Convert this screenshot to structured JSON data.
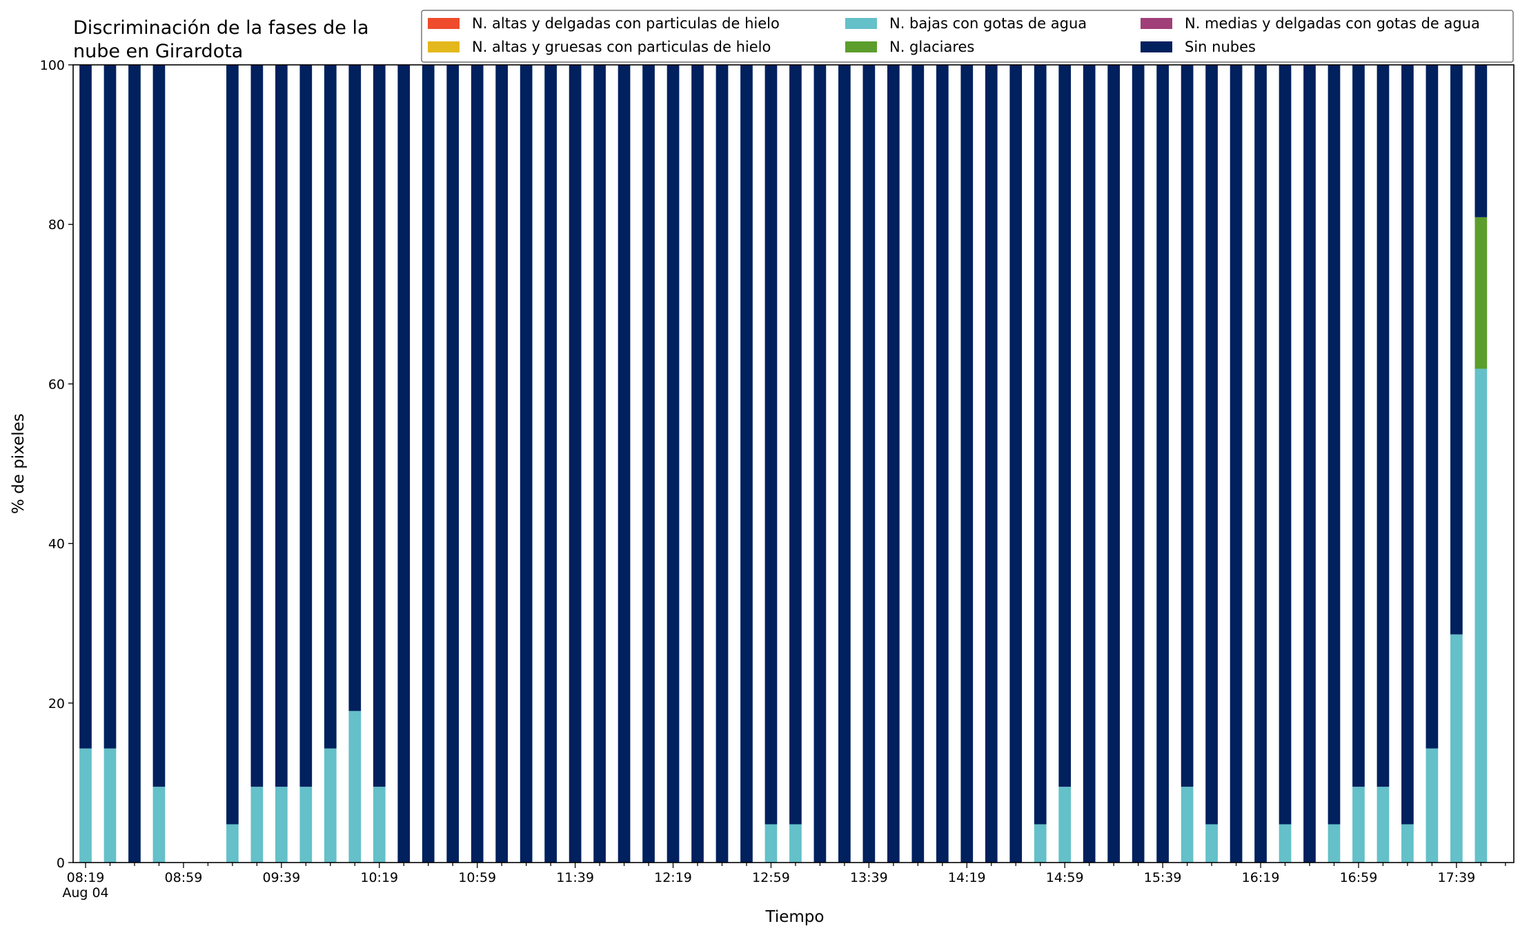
{
  "chart_data": {
    "type": "bar",
    "stacked": true,
    "title_lines": [
      "Discriminación de la fases de la",
      "nube en Girardota"
    ],
    "xlabel": "Tiempo",
    "ylabel": "% de pixeles",
    "ylim": [
      0,
      100
    ],
    "yticks": [
      0,
      20,
      40,
      60,
      80,
      100
    ],
    "grid": false,
    "legend_position": "top-right",
    "legend_columns": 3,
    "x_start": "08:19",
    "x_step_minutes": 10,
    "x_tick_labels": [
      "08:19",
      "08:59",
      "09:39",
      "10:19",
      "10:59",
      "11:39",
      "12:19",
      "12:59",
      "13:39",
      "14:19",
      "14:59",
      "15:39",
      "16:19",
      "16:59",
      "17:39"
    ],
    "x_tick_sublabel": "Aug 04",
    "categories": [
      "08:19",
      "08:29",
      "08:39",
      "08:49",
      "08:59",
      "09:09",
      "09:19",
      "09:29",
      "09:39",
      "09:49",
      "09:59",
      "10:09",
      "10:19",
      "10:29",
      "10:39",
      "10:49",
      "10:59",
      "11:09",
      "11:19",
      "11:29",
      "11:39",
      "11:49",
      "11:59",
      "12:09",
      "12:19",
      "12:29",
      "12:39",
      "12:49",
      "12:59",
      "13:09",
      "13:19",
      "13:29",
      "13:39",
      "13:49",
      "13:59",
      "14:09",
      "14:19",
      "14:29",
      "14:39",
      "14:49",
      "14:59",
      "15:09",
      "15:19",
      "15:29",
      "15:39",
      "15:49",
      "15:59",
      "16:09",
      "16:19",
      "16:29",
      "16:39",
      "16:49",
      "16:59",
      "17:09",
      "17:19",
      "17:29",
      "17:39",
      "17:49"
    ],
    "series": [
      {
        "name": "N. altas y delgadas con particulas de hielo",
        "color": "#ee4c2c",
        "values": [
          0,
          0,
          0,
          0,
          0,
          0,
          0,
          0,
          0,
          0,
          0,
          0,
          0,
          0,
          0,
          0,
          0,
          0,
          0,
          0,
          0,
          0,
          0,
          0,
          0,
          0,
          0,
          0,
          0,
          0,
          0,
          0,
          0,
          0,
          0,
          0,
          0,
          0,
          0,
          0,
          0,
          0,
          0,
          0,
          0,
          0,
          0,
          0,
          0,
          0,
          0,
          0,
          0,
          0,
          0,
          0,
          0,
          0
        ]
      },
      {
        "name": "N. altas y gruesas con particulas de hielo",
        "color": "#e3b81c",
        "values": [
          0,
          0,
          0,
          0,
          0,
          0,
          0,
          0,
          0,
          0,
          0,
          0,
          0,
          0,
          0,
          0,
          0,
          0,
          0,
          0,
          0,
          0,
          0,
          0,
          0,
          0,
          0,
          0,
          0,
          0,
          0,
          0,
          0,
          0,
          0,
          0,
          0,
          0,
          0,
          0,
          0,
          0,
          0,
          0,
          0,
          0,
          0,
          0,
          0,
          0,
          0,
          0,
          0,
          0,
          0,
          0,
          0,
          0
        ]
      },
      {
        "name": "N. bajas con gotas de agua",
        "color": "#64c0c9",
        "values": [
          14.3,
          14.3,
          0,
          9.5,
          0,
          0,
          4.8,
          9.5,
          9.5,
          9.5,
          14.3,
          19,
          9.5,
          0,
          0,
          0,
          0,
          0,
          0,
          0,
          0,
          0,
          0,
          0,
          0,
          0,
          0,
          0,
          4.8,
          4.8,
          0,
          0,
          0,
          0,
          0,
          0,
          0,
          0,
          0,
          4.8,
          9.5,
          0,
          0,
          0,
          0,
          9.5,
          4.8,
          0,
          0,
          4.8,
          0,
          4.8,
          9.5,
          9.5,
          4.8,
          14.3,
          28.6,
          61.9
        ]
      },
      {
        "name": "N. glaciares",
        "color": "#5c9e2c",
        "values": [
          0,
          0,
          0,
          0,
          0,
          0,
          0,
          0,
          0,
          0,
          0,
          0,
          0,
          0,
          0,
          0,
          0,
          0,
          0,
          0,
          0,
          0,
          0,
          0,
          0,
          0,
          0,
          0,
          0,
          0,
          0,
          0,
          0,
          0,
          0,
          0,
          0,
          0,
          0,
          0,
          0,
          0,
          0,
          0,
          0,
          0,
          0,
          0,
          0,
          0,
          0,
          0,
          0,
          0,
          0,
          0,
          0,
          19
        ]
      },
      {
        "name": "N. medias y delgadas con gotas de agua",
        "color": "#a03f78",
        "values": [
          0,
          0,
          0,
          0,
          0,
          0,
          0,
          0,
          0,
          0,
          0,
          0,
          0,
          0,
          0,
          0,
          0,
          0,
          0,
          0,
          0,
          0,
          0,
          0,
          0,
          0,
          0,
          0,
          0,
          0,
          0,
          0,
          0,
          0,
          0,
          0,
          0,
          0,
          0,
          0,
          0,
          0,
          0,
          0,
          0,
          0,
          0,
          0,
          0,
          0,
          0,
          0,
          0,
          0,
          0,
          0,
          0,
          0
        ]
      },
      {
        "name": "Sin nubes",
        "color": "#00205e",
        "values": [
          85.7,
          85.7,
          100,
          90.5,
          0,
          0,
          95.2,
          90.5,
          90.5,
          90.5,
          85.7,
          81,
          90.5,
          100,
          100,
          100,
          100,
          100,
          100,
          100,
          100,
          100,
          100,
          100,
          100,
          100,
          100,
          100,
          95.2,
          95.2,
          100,
          100,
          100,
          100,
          100,
          100,
          100,
          100,
          100,
          95.2,
          90.5,
          100,
          100,
          100,
          100,
          90.5,
          95.2,
          100,
          100,
          95.2,
          100,
          95.2,
          90.5,
          90.5,
          95.2,
          85.7,
          71.4,
          19.1
        ]
      }
    ]
  }
}
